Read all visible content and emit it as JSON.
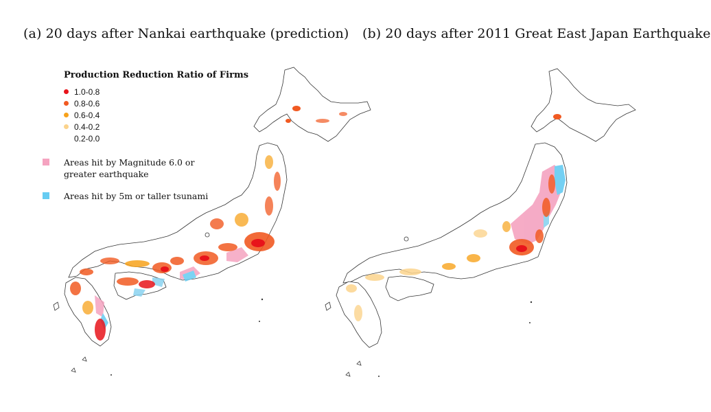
{
  "titles": {
    "a": "(a) 20 days after Nankai earthquake (prediction)",
    "b": "(b) 20 days after 2011 Great East Japan Earthquake"
  },
  "legend": {
    "title": "Production Reduction Ratio of Firms",
    "ratio_bins": [
      {
        "label": "1.0-0.8",
        "color": "#e8141b"
      },
      {
        "label": "0.8-0.6",
        "color": "#f15a22"
      },
      {
        "label": "0.6-0.4",
        "color": "#f7a21b"
      },
      {
        "label": "0.4-0.2",
        "color": "#fbd38c"
      },
      {
        "label": "0.2-0.0",
        "color": "#ffffff"
      }
    ],
    "areas": [
      {
        "line1": "Areas hit by Magnitude 6.0 or",
        "line2": "greater earthquake",
        "color": "#f5a3c0"
      },
      {
        "line1": "Areas hit by 5m or taller tsunami",
        "line2": "",
        "color": "#66ccf2"
      }
    ]
  }
}
